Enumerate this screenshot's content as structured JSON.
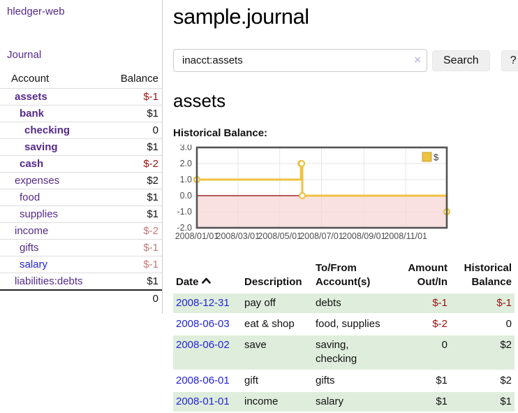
{
  "app": {
    "title": "hledger-web"
  },
  "colors": {
    "link_purple": "#552a8b",
    "link_blue": "#2222dd",
    "negative_strong": "#971111",
    "negative_light": "#c17979",
    "row_stripe_green": "#dfeedc",
    "series_gold": "#edc240"
  },
  "sidebar": {
    "nav": {
      "journal": "Journal"
    },
    "accounts_table": {
      "headers": {
        "account": "Account",
        "balance": "Balance"
      },
      "rows": [
        {
          "name": "assets",
          "balance": "$-1",
          "depth": 1,
          "bold": true,
          "negative": "strong"
        },
        {
          "name": "bank",
          "balance": "$1",
          "depth": 2,
          "bold": true
        },
        {
          "name": "checking",
          "balance": "0",
          "depth": 3,
          "bold": true
        },
        {
          "name": "saving",
          "balance": "$1",
          "depth": 3,
          "bold": true
        },
        {
          "name": "cash",
          "balance": "$-2",
          "depth": 2,
          "bold": true,
          "negative": "strong"
        },
        {
          "name": "expenses",
          "balance": "$2",
          "depth": 1
        },
        {
          "name": "food",
          "balance": "$1",
          "depth": 2
        },
        {
          "name": "supplies",
          "balance": "$1",
          "depth": 2
        },
        {
          "name": "income",
          "balance": "$-2",
          "depth": 1,
          "negative": "light"
        },
        {
          "name": "gifts",
          "balance": "$-1",
          "depth": 2,
          "negative": "light"
        },
        {
          "name": "salary",
          "balance": "$-1",
          "depth": 2,
          "negative": "light",
          "link_color": "blue"
        },
        {
          "name": "liabilities:debts",
          "balance": "$1",
          "depth": 1
        }
      ],
      "total": "0"
    }
  },
  "main": {
    "title": "sample.journal",
    "search": {
      "value": "inacct:assets",
      "clear_icon": "×",
      "button_label": "Search",
      "help_label": "?"
    },
    "account_heading": "assets",
    "chart_label": "Historical Balance:",
    "register_table": {
      "headers": {
        "date": "Date",
        "description": "Description",
        "account": "To/From Account(s)",
        "amount": "Amount Out/In",
        "balance": "Historical Balance"
      },
      "rows": [
        {
          "date": "2008-12-31",
          "description": "pay off",
          "account": "debts",
          "amount": "$-1",
          "balance": "$-1"
        },
        {
          "date": "2008-06-03",
          "description": "eat & shop",
          "account": "food, supplies",
          "amount": "$-2",
          "balance": "0"
        },
        {
          "date": "2008-06-02",
          "description": "save",
          "account": "saving, checking",
          "amount": "0",
          "balance": "$2"
        },
        {
          "date": "2008-06-01",
          "description": "gift",
          "account": "gifts",
          "amount": "$1",
          "balance": "$2"
        },
        {
          "date": "2008-01-01",
          "description": "income",
          "account": "salary",
          "amount": "$1",
          "balance": "$1"
        }
      ]
    }
  },
  "chart_data": {
    "type": "line",
    "step": true,
    "title": "Historical Balance:",
    "xlabel": "",
    "ylabel": "",
    "xlim": [
      "2008-01-01",
      "2008-12-31"
    ],
    "ylim": [
      -2,
      3
    ],
    "grid": true,
    "legend": {
      "position": "top-right",
      "entries": [
        {
          "label": "$",
          "color": "#edc240"
        }
      ]
    },
    "x_ticks": [
      {
        "date": "2008-01-01",
        "label": "2008/01/01"
      },
      {
        "date": "2008-03-01",
        "label": "2008/03/01"
      },
      {
        "date": "2008-05-01",
        "label": "2008/05/01"
      },
      {
        "date": "2008-07-01",
        "label": "2008/07/01"
      },
      {
        "date": "2008-09-01",
        "label": "2008/09/01"
      },
      {
        "date": "2008-11-01",
        "label": "2008/11/01"
      }
    ],
    "y_ticks": [
      {
        "v": 3,
        "label": "3.0"
      },
      {
        "v": 2,
        "label": "2.0"
      },
      {
        "v": 1,
        "label": "1.0"
      },
      {
        "v": 0,
        "label": "0.0"
      },
      {
        "v": -1,
        "label": "-1.0"
      },
      {
        "v": -2,
        "label": "-2.0"
      }
    ],
    "series": [
      {
        "name": "$",
        "color": "#edc240",
        "marker": "circle",
        "points": [
          [
            "2008-01-01",
            1
          ],
          [
            "2008-06-01",
            2
          ],
          [
            "2008-06-02",
            2
          ],
          [
            "2008-06-03",
            0
          ],
          [
            "2008-12-31",
            -1
          ]
        ]
      }
    ],
    "negative_region_fill": "#f7d7d7",
    "zero_line_color": "#8b0000",
    "border_color": "#545454",
    "grid_color": "#e4e4e4"
  }
}
